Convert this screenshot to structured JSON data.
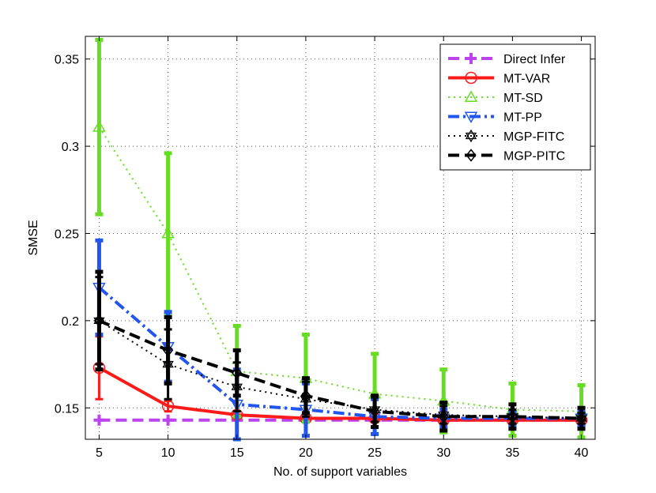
{
  "chart_data": {
    "type": "line",
    "xlabel": "No. of support variables",
    "ylabel": "SMSE",
    "x": [
      5,
      10,
      15,
      20,
      25,
      30,
      35,
      40
    ],
    "xlim": [
      4,
      41
    ],
    "ylim": [
      0.132,
      0.363
    ],
    "xticks": [
      "5",
      "10",
      "15",
      "20",
      "25",
      "30",
      "35",
      "40"
    ],
    "xtick_values": [
      5,
      10,
      15,
      20,
      25,
      30,
      35,
      40
    ],
    "yticks": [
      "0.15",
      "0.2",
      "0.25",
      "0.3",
      "0.35"
    ],
    "ytick_values": [
      0.15,
      0.2,
      0.25,
      0.3,
      0.35
    ],
    "grid": true,
    "legend_position": "top-right",
    "series": [
      {
        "name": "Direct Infer",
        "color": "#bb44ee",
        "marker": "plus",
        "linestyle": "dashed",
        "values": [
          0.143,
          0.143,
          0.143,
          0.143,
          0.143,
          0.143,
          0.143,
          0.143
        ],
        "err": [
          0,
          0,
          0,
          0,
          0,
          0,
          0,
          0
        ]
      },
      {
        "name": "MT-VAR",
        "color": "#ff1a1a",
        "marker": "circle",
        "linestyle": "solid",
        "values": [
          0.173,
          0.151,
          0.146,
          0.144,
          0.144,
          0.143,
          0.143,
          0.143
        ],
        "err": [
          0.018,
          0.003,
          0.002,
          0.001,
          0.001,
          0.001,
          0.001,
          0.001
        ]
      },
      {
        "name": "MT-SD",
        "color": "#66dd22",
        "marker": "triangle-up",
        "linestyle": "dotted",
        "values": [
          0.311,
          0.25,
          0.171,
          0.167,
          0.158,
          0.154,
          0.149,
          0.148
        ],
        "err": [
          0.05,
          0.046,
          0.026,
          0.025,
          0.023,
          0.018,
          0.015,
          0.015
        ]
      },
      {
        "name": "MT-PP",
        "color": "#2255ee",
        "marker": "triangle-down",
        "linestyle": "dashdot",
        "values": [
          0.219,
          0.185,
          0.152,
          0.149,
          0.145,
          0.144,
          0.144,
          0.144
        ],
        "err": [
          0.027,
          0.02,
          0.02,
          0.015,
          0.01,
          0.005,
          0.004,
          0.004
        ]
      },
      {
        "name": "MGP-FITC",
        "color": "#000000",
        "marker": "hexagram",
        "linestyle": "dotted",
        "values": [
          0.2,
          0.175,
          0.162,
          0.155,
          0.149,
          0.146,
          0.145,
          0.144
        ],
        "err": [
          0.025,
          0.02,
          0.014,
          0.01,
          0.007,
          0.005,
          0.004,
          0.003
        ]
      },
      {
        "name": "MGP-PITC",
        "color": "#000000",
        "marker": "diamond",
        "linestyle": "dashed",
        "values": [
          0.2,
          0.183,
          0.17,
          0.157,
          0.148,
          0.145,
          0.145,
          0.144
        ],
        "err": [
          0.028,
          0.019,
          0.013,
          0.01,
          0.009,
          0.008,
          0.007,
          0.006
        ]
      }
    ]
  }
}
